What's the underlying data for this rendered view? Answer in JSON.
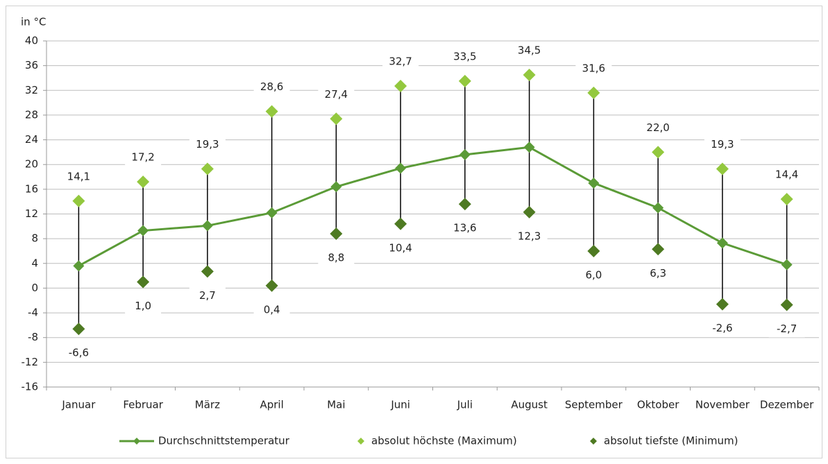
{
  "chart_data": {
    "type": "line",
    "y_label": "in °C",
    "categories": [
      "Januar",
      "Februar",
      "März",
      "April",
      "Mai",
      "Juni",
      "Juli",
      "August",
      "September",
      "Oktober",
      "November",
      "Dezember"
    ],
    "series": [
      {
        "name": "Durchschnittstemperatur",
        "color": "#5b9b37",
        "values": [
          3.6,
          9.3,
          10.1,
          12.2,
          16.4,
          19.4,
          21.6,
          22.8,
          17.0,
          13.0,
          7.3,
          3.8
        ]
      },
      {
        "name": "absolut höchste (Maximum)",
        "color": "#93c83e",
        "values": [
          14.1,
          17.2,
          19.3,
          28.6,
          27.4,
          32.7,
          33.5,
          34.5,
          31.6,
          22.0,
          19.3,
          14.4
        ],
        "value_labels": [
          "14,1",
          "17,2",
          "19,3",
          "28,6",
          "27,4",
          "32,7",
          "33,5",
          "34,5",
          "31,6",
          "22,0",
          "19,3",
          "14,4"
        ]
      },
      {
        "name": "absolut tiefste (Minimum)",
        "color": "#4e7a22",
        "values": [
          -6.6,
          1.0,
          2.7,
          0.4,
          8.8,
          10.4,
          13.6,
          12.3,
          6.0,
          6.3,
          -2.6,
          -2.7
        ],
        "value_labels": [
          "-6,6",
          "1,0",
          "2,7",
          "0,4",
          "8,8",
          "10,4",
          "13,6",
          "12,3",
          "6,0",
          "6,3",
          "-2,6",
          "-2,7"
        ]
      }
    ],
    "ylim": [
      -16,
      40
    ],
    "yticks": [
      -16,
      -12,
      -8,
      -4,
      0,
      4,
      8,
      12,
      16,
      20,
      24,
      28,
      32,
      36,
      40
    ],
    "grid": true,
    "legend": "bottom"
  }
}
